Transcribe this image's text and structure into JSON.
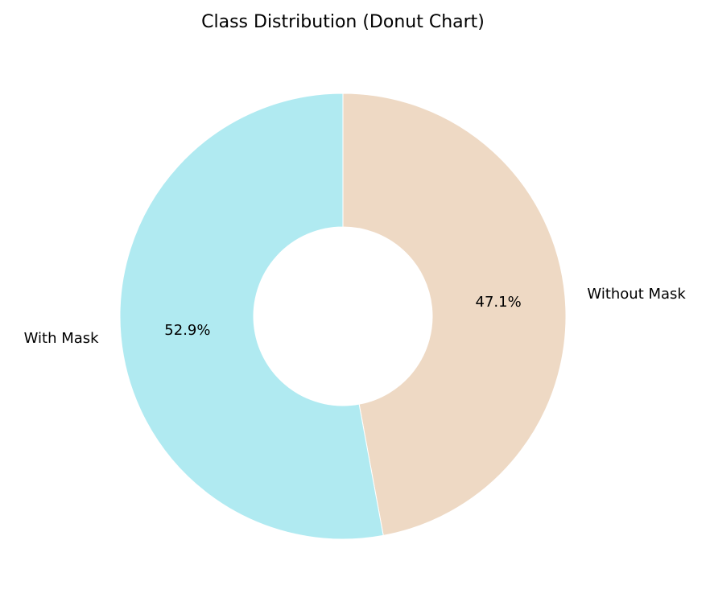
{
  "chart_data": {
    "type": "pie",
    "title": "Class Distribution (Donut Chart)",
    "categories": [
      "Without Mask",
      "With Mask"
    ],
    "values": [
      47.1,
      52.9
    ],
    "autopct_labels": [
      "47.1%",
      "52.9%"
    ],
    "colors": [
      "#eed9c4",
      "#b0eaf1"
    ],
    "start_angle_deg": 90,
    "direction": "clockwise",
    "donut": true
  }
}
